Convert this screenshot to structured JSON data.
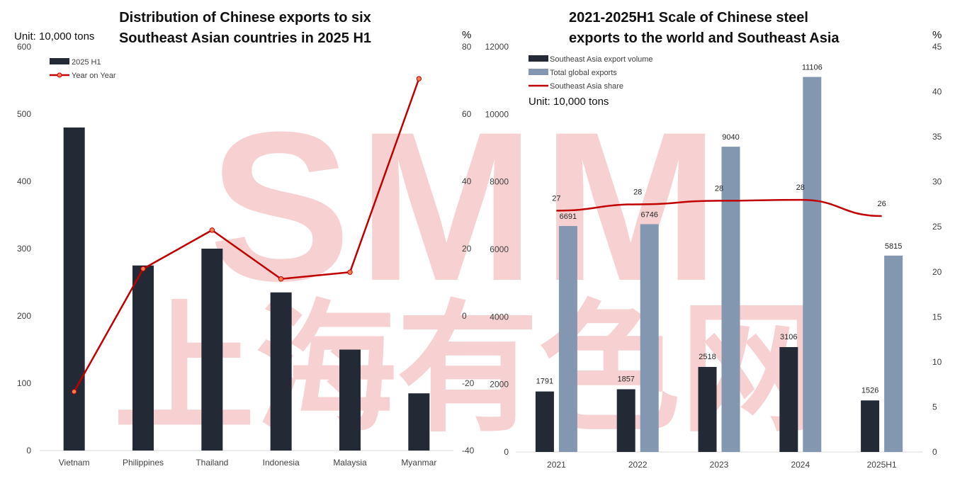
{
  "colors": {
    "dark_bar": "#232a35",
    "light_bar": "#8497b0",
    "line": "#c00000",
    "marker_fill": "#ff7f50",
    "axis": "#d9d9d9",
    "watermark": "#f6c9c9"
  },
  "watermark": {
    "logo": "SMM",
    "cn": "上海有色网"
  },
  "chart_data": [
    {
      "type": "bar",
      "title_lines": [
        "Distribution of Chinese exports to six",
        "Southeast Asian countries in 2025 H1"
      ],
      "unit_label": "Unit: 10,000 tons",
      "y2_unit": "%",
      "categories": [
        "Vietnam",
        "Philippines",
        "Thailand",
        "Indonesia",
        "Malaysia",
        "Myanmar"
      ],
      "series": [
        {
          "name": "2025 H1",
          "type": "bar",
          "axis": "left",
          "values": [
            480,
            275,
            300,
            235,
            150,
            85
          ]
        },
        {
          "name": "Year on Year",
          "type": "line",
          "axis": "right",
          "values": [
            -22.5,
            14,
            25.5,
            11,
            13,
            70.5
          ]
        }
      ],
      "ylim": [
        0,
        600
      ],
      "yticks": [
        0,
        100,
        200,
        300,
        400,
        500,
        600
      ],
      "y2lim": [
        -40,
        80
      ],
      "y2ticks": [
        -40,
        -20,
        0,
        20,
        40,
        60,
        80
      ],
      "legend": "top-left",
      "grid": false
    },
    {
      "type": "bar",
      "title_lines": [
        "2021-2025H1 Scale of Chinese steel",
        "exports to the world and Southeast Asia"
      ],
      "unit_label": "Unit: 10,000 tons",
      "y2_unit": "%",
      "categories": [
        "2021",
        "2022",
        "2023",
        "2024",
        "2025H1"
      ],
      "series": [
        {
          "name": "Southeast Asia export volume",
          "type": "bar",
          "axis": "left",
          "values": [
            1791,
            1857,
            2518,
            3106,
            1526
          ],
          "labels": [
            "1791",
            "1857",
            "2518",
            "3106",
            "1526"
          ]
        },
        {
          "name": "Total global exports",
          "type": "bar",
          "axis": "left",
          "values": [
            6691,
            6746,
            9040,
            11106,
            5815
          ],
          "labels": [
            "6691",
            "6746",
            "9040",
            "11106",
            "5815"
          ]
        },
        {
          "name": "Southeast Asia share",
          "type": "line",
          "axis": "right",
          "values": [
            26.8,
            27.5,
            27.9,
            28.0,
            26.2
          ],
          "labels": [
            "27",
            "28",
            "28",
            "28",
            "26"
          ]
        }
      ],
      "ylim": [
        0,
        12000
      ],
      "yticks": [
        0,
        2000,
        4000,
        6000,
        8000,
        10000,
        12000
      ],
      "y2lim": [
        0,
        45
      ],
      "y2ticks": [
        0,
        5,
        10,
        15,
        20,
        25,
        30,
        35,
        40,
        45
      ],
      "legend": "top-left",
      "grid": false
    }
  ]
}
